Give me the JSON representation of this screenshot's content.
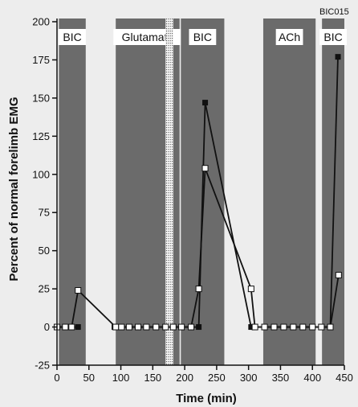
{
  "chart_data": {
    "type": "line",
    "figure_id": "BIC015",
    "xlabel": "Time (min)",
    "ylabel": "Percent of normal forelimb EMG",
    "xlim": [
      0,
      450
    ],
    "ylim": [
      -25,
      200
    ],
    "xticks": [
      0,
      50,
      100,
      150,
      200,
      250,
      300,
      350,
      400,
      450
    ],
    "yticks": [
      -25,
      0,
      25,
      50,
      75,
      100,
      125,
      150,
      175,
      200
    ],
    "grid": false,
    "colors": {
      "band": "#6b6b6b",
      "line": "#111111",
      "open_marker": "#ffffff",
      "label_bg": "#ffffff",
      "background": "#ededed"
    },
    "bands": [
      {
        "label": "BIC",
        "start": 3,
        "end": 45
      },
      {
        "label": "Glutamate",
        "start": 92,
        "end": 192
      },
      {
        "label": "BIC",
        "start": 194,
        "end": 262
      },
      {
        "label": "ACh",
        "start": 323,
        "end": 405
      },
      {
        "label": "BIC",
        "start": 415,
        "end": 450
      }
    ],
    "break": {
      "start": 170,
      "end": 182
    },
    "series": [
      {
        "marker": "filled-square",
        "segments": [
          [
            [
              0,
              0
            ],
            [
              13,
              0
            ],
            [
              23,
              0
            ],
            [
              33,
              0
            ]
          ],
          [
            [
              90,
              0
            ],
            [
              101,
              0
            ],
            [
              113,
              0
            ],
            [
              127,
              0
            ],
            [
              140,
              0
            ],
            [
              155,
              0
            ],
            [
              170,
              0
            ],
            [
              182,
              0
            ],
            [
              195,
              0
            ],
            [
              210,
              0
            ],
            [
              222,
              0
            ],
            [
              232,
              147
            ],
            [
              304,
              0
            ],
            [
              310,
              0
            ],
            [
              325,
              0
            ],
            [
              340,
              0
            ],
            [
              355,
              0
            ],
            [
              370,
              0
            ],
            [
              385,
              0
            ],
            [
              400,
              0
            ],
            [
              414,
              0
            ],
            [
              428,
              0
            ],
            [
              440,
              177
            ]
          ]
        ]
      },
      {
        "marker": "open-square",
        "segments": [
          [
            [
              0,
              0
            ],
            [
              13,
              0
            ],
            [
              23,
              0
            ],
            [
              33,
              24
            ],
            [
              92,
              0
            ]
          ],
          [
            [
              101,
              0
            ],
            [
              113,
              0
            ],
            [
              127,
              0
            ],
            [
              140,
              0
            ],
            [
              155,
              0
            ],
            [
              170,
              0
            ],
            [
              182,
              0
            ],
            [
              195,
              0
            ],
            [
              210,
              0
            ],
            [
              222,
              25
            ],
            [
              232,
              104
            ],
            [
              304,
              25
            ],
            [
              310,
              0
            ],
            [
              325,
              0
            ],
            [
              340,
              0
            ],
            [
              355,
              0
            ],
            [
              370,
              0
            ],
            [
              385,
              0
            ],
            [
              400,
              0
            ],
            [
              414,
              0
            ],
            [
              428,
              0
            ],
            [
              441,
              34
            ]
          ]
        ]
      }
    ]
  }
}
